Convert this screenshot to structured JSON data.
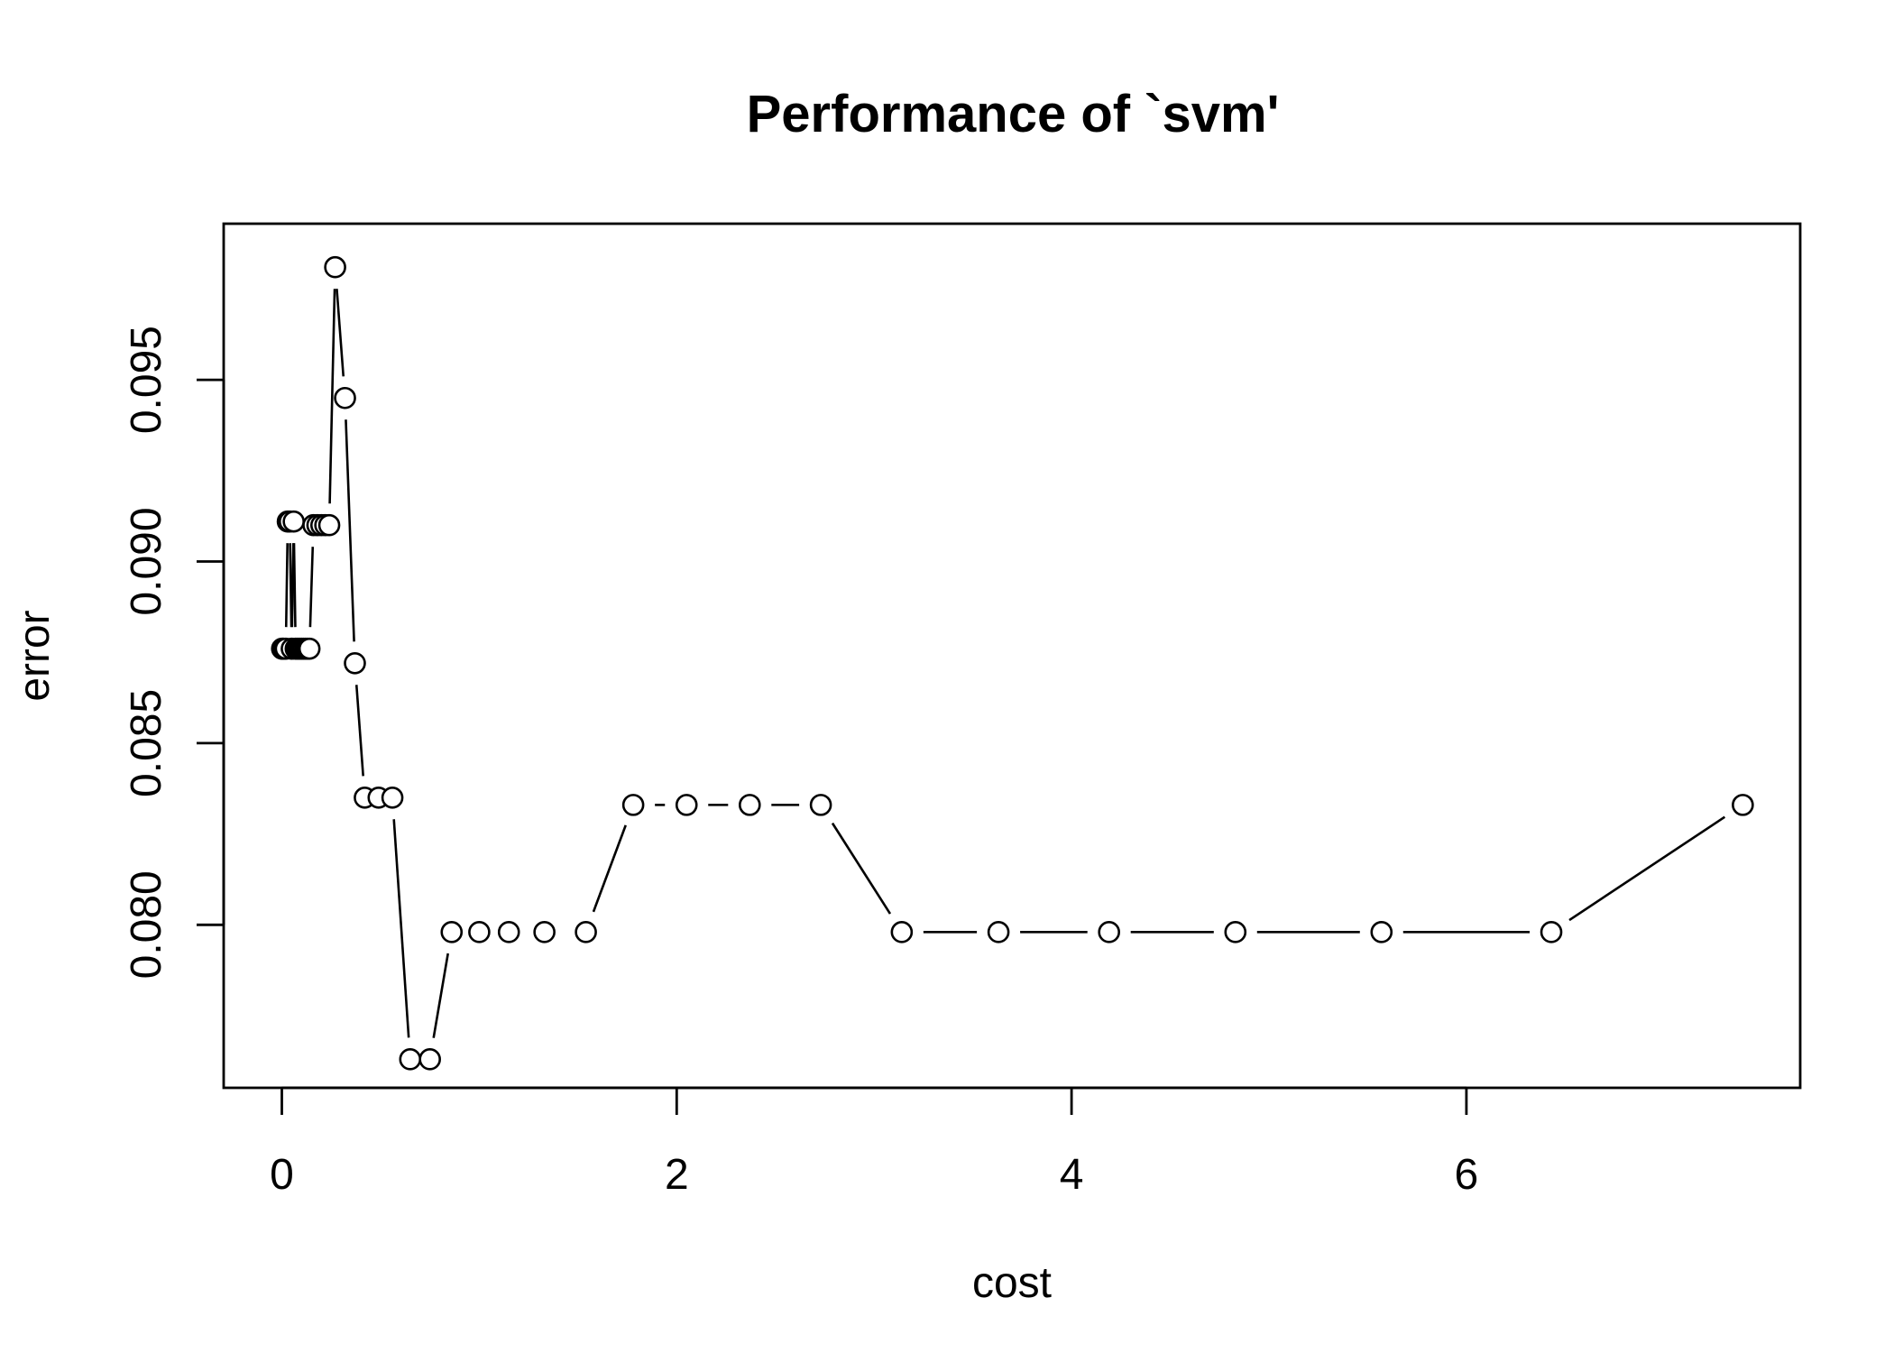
{
  "chart_data": {
    "type": "line",
    "title": "Performance of `svm'",
    "xlabel": "cost",
    "ylabel": "error",
    "xlim": [
      -0.15,
      7.6
    ],
    "ylim": [
      0.0763,
      0.0982
    ],
    "xticks": [
      0,
      2,
      4,
      6
    ],
    "yticks": [
      0.08,
      0.085,
      0.09,
      0.095
    ],
    "xtick_labels": [
      "0",
      "2",
      "4",
      "6"
    ],
    "ytick_labels": [
      "0.080",
      "0.085",
      "0.090",
      "0.095"
    ],
    "grid": false,
    "legend": "none",
    "point_style": "open-circle-with-connecting-lines",
    "series": [
      {
        "x": [
          0.001,
          0.005,
          0.01,
          0.02,
          0.03,
          0.04,
          0.05,
          0.06,
          0.07,
          0.08,
          0.09,
          0.1,
          0.11,
          0.12,
          0.13,
          0.14,
          0.16,
          0.18,
          0.2,
          0.22,
          0.24,
          0.27,
          0.32,
          0.37,
          0.42,
          0.49,
          0.56,
          0.65,
          0.75,
          0.86,
          1.0,
          1.15,
          1.33,
          1.54,
          1.78,
          2.05,
          2.37,
          2.73,
          3.14,
          3.63,
          4.19,
          4.83,
          5.57,
          6.43,
          7.4
        ],
        "y": [
          0.0876,
          0.0876,
          0.0876,
          0.0876,
          0.0911,
          0.0911,
          0.0876,
          0.0911,
          0.0876,
          0.0876,
          0.0876,
          0.0876,
          0.0876,
          0.0876,
          0.0876,
          0.0876,
          0.091,
          0.091,
          0.091,
          0.091,
          0.091,
          0.0981,
          0.0945,
          0.0872,
          0.0835,
          0.0835,
          0.0835,
          0.0763,
          0.0763,
          0.0798,
          0.0798,
          0.0798,
          0.0798,
          0.0798,
          0.0833,
          0.0833,
          0.0833,
          0.0833,
          0.0798,
          0.0798,
          0.0798,
          0.0798,
          0.0798,
          0.0798,
          0.0833
        ]
      }
    ]
  }
}
